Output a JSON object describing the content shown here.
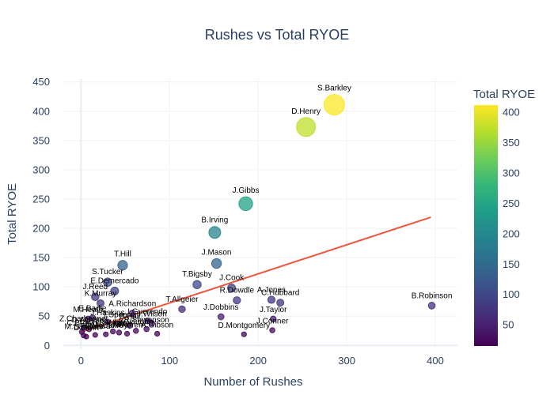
{
  "chart_data": {
    "type": "scatter",
    "title": "Rushes vs Total RYOE",
    "xlabel": "Number of Rushes",
    "ylabel": "Total RYOE",
    "xlim": [
      -20,
      425
    ],
    "ylim": [
      -5,
      455
    ],
    "xticks": [
      0,
      100,
      200,
      300,
      400
    ],
    "yticks": [
      0,
      50,
      100,
      150,
      200,
      250,
      300,
      350,
      400,
      450
    ],
    "grid": true,
    "colorbar": {
      "title": "Total RYOE",
      "colorscale": "viridis",
      "range": [
        15,
        412
      ],
      "ticks": [
        50,
        100,
        150,
        200,
        250,
        300,
        350,
        400
      ]
    },
    "trendline": {
      "color": "#ef553b",
      "x": [
        0,
        395
      ],
      "y": [
        23,
        219
      ]
    },
    "points": [
      {
        "label": "S.Barkley",
        "x": 286,
        "y": 411
      },
      {
        "label": "D.Henry",
        "x": 254,
        "y": 373
      },
      {
        "label": "J.Gibbs",
        "x": 186,
        "y": 242
      },
      {
        "label": "B.Irving",
        "x": 151,
        "y": 193
      },
      {
        "label": "J.Mason",
        "x": 153,
        "y": 140
      },
      {
        "label": "T.Hill",
        "x": 47,
        "y": 137
      },
      {
        "label": "E.Demercado",
        "x": 38,
        "y": 93
      },
      {
        "label": "S.Tucker",
        "x": 30,
        "y": 108
      },
      {
        "label": "T.Bigsby",
        "x": 131,
        "y": 104
      },
      {
        "label": "J.Cook",
        "x": 170,
        "y": 98
      },
      {
        "label": "J.Reed",
        "x": 16,
        "y": 83
      },
      {
        "label": "K.Murray",
        "x": 22,
        "y": 72
      },
      {
        "label": "R.Dowdle",
        "x": 176,
        "y": 77
      },
      {
        "label": "A.Jones",
        "x": 215,
        "y": 78
      },
      {
        "label": "C.Hubbard",
        "x": 225,
        "y": 73
      },
      {
        "label": "B.Robinson",
        "x": 396,
        "y": 68
      },
      {
        "label": "J.Taylor",
        "x": 217,
        "y": 45
      },
      {
        "label": "T.Allgeier",
        "x": 114,
        "y": 62
      },
      {
        "label": "A.Richardson",
        "x": 58,
        "y": 55
      },
      {
        "label": "J.Dobbins",
        "x": 158,
        "y": 49
      },
      {
        "label": "J.Conner",
        "x": 216,
        "y": 26
      },
      {
        "label": "D.Montgomery",
        "x": 184,
        "y": 19
      },
      {
        "label": "I.Guerendo",
        "x": 75,
        "y": 42
      },
      {
        "label": "J.Wilson",
        "x": 80,
        "y": 38
      },
      {
        "label": "A.Gibson",
        "x": 86,
        "y": 20
      },
      {
        "label": "M.Heath",
        "x": 8,
        "y": 45
      },
      {
        "label": "E.Badie",
        "x": 13,
        "y": 47
      },
      {
        "label": "J.Haskins",
        "x": 30,
        "y": 40
      },
      {
        "label": "T.Spears",
        "x": 42,
        "y": 37
      },
      {
        "label": "B.Hall",
        "x": 55,
        "y": 34
      },
      {
        "label": "K.Vaughn",
        "x": 62,
        "y": 25
      },
      {
        "label": "R.Stevenson",
        "x": 74,
        "y": 28
      },
      {
        "label": "Z.Charbonnet",
        "x": 3,
        "y": 30
      },
      {
        "label": "D.Achane",
        "x": 9,
        "y": 28
      },
      {
        "label": "K.Miller",
        "x": 43,
        "y": 22
      },
      {
        "label": "J.Warren",
        "x": 52,
        "y": 20
      },
      {
        "label": "C.Brown",
        "x": 1,
        "y": 23
      },
      {
        "label": "M.Sanders",
        "x": 3,
        "y": 17
      },
      {
        "label": "D.Swift",
        "x": 6,
        "y": 15
      },
      {
        "label": "T.Pollard",
        "x": 16,
        "y": 18
      },
      {
        "label": "C.McCaffrey",
        "x": 28,
        "y": 19
      },
      {
        "label": "R.White",
        "x": 36,
        "y": 24
      }
    ]
  }
}
